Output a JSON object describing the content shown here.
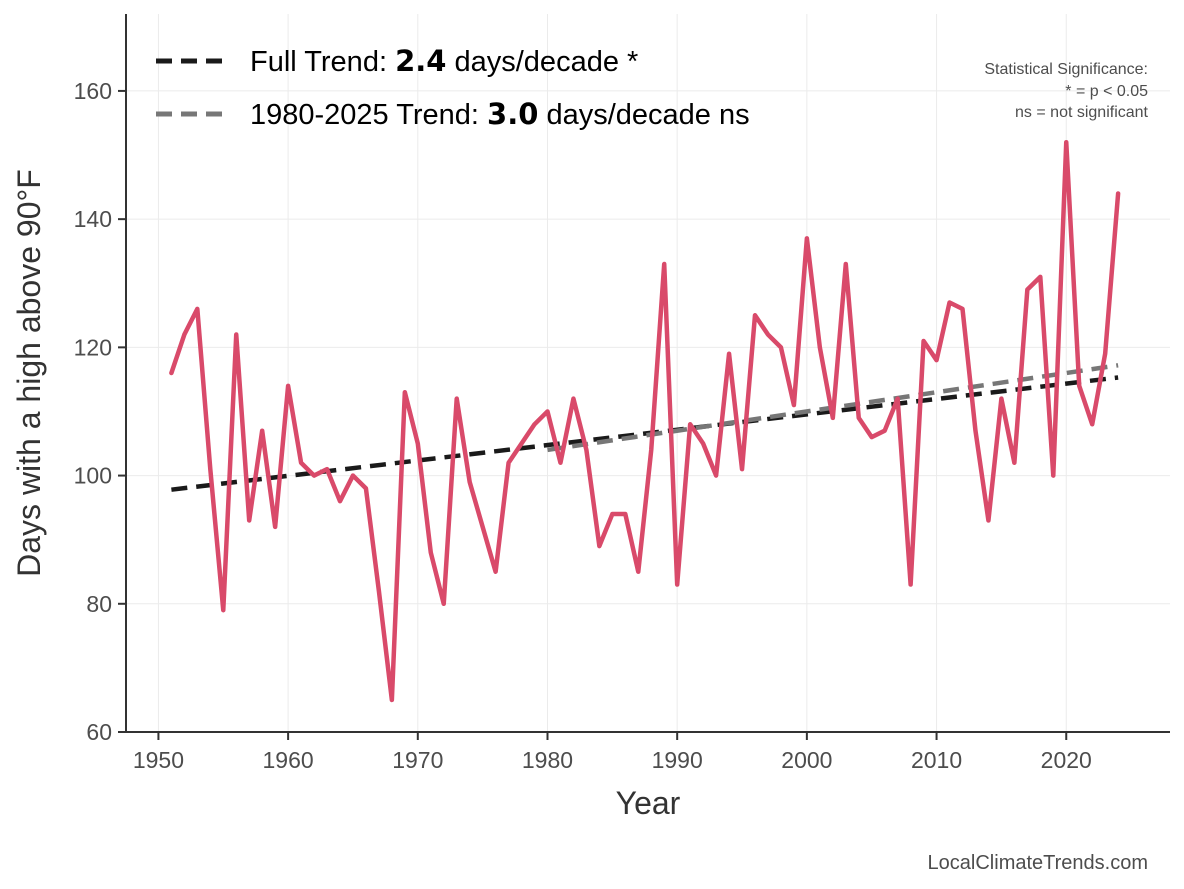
{
  "chart_data": {
    "type": "line",
    "title": "",
    "xlabel": "Year",
    "ylabel": "Days with a high above 90°F",
    "xlim": [
      1947.5,
      2028
    ],
    "ylim": [
      60,
      172
    ],
    "x_ticks": [
      1950,
      1960,
      1970,
      1980,
      1990,
      2000,
      2010,
      2020
    ],
    "y_ticks": [
      60,
      80,
      100,
      120,
      140,
      160
    ],
    "grid": true,
    "legend_position": "top-left",
    "series": [
      {
        "color": "#d94a6a",
        "x": [
          1951,
          1952,
          1953,
          1954,
          1955,
          1956,
          1957,
          1958,
          1959,
          1960,
          1961,
          1962,
          1963,
          1964,
          1965,
          1966,
          1967,
          1968,
          1969,
          1970,
          1971,
          1972,
          1973,
          1974,
          1975,
          1976,
          1977,
          1978,
          1979,
          1980,
          1981,
          1982,
          1983,
          1984,
          1985,
          1986,
          1987,
          1988,
          1989,
          1990,
          1991,
          1992,
          1993,
          1994,
          1995,
          1996,
          1997,
          1998,
          1999,
          2000,
          2001,
          2002,
          2003,
          2004,
          2005,
          2006,
          2007,
          2008,
          2009,
          2010,
          2011,
          2012,
          2013,
          2014,
          2015,
          2016,
          2017,
          2018,
          2019,
          2020,
          2021,
          2022,
          2023,
          2024
        ],
        "values": [
          116,
          122,
          126,
          101,
          79,
          122,
          93,
          107,
          92,
          114,
          102,
          100,
          101,
          96,
          100,
          98,
          82,
          65,
          113,
          105,
          88,
          80,
          112,
          99,
          92,
          85,
          102,
          105,
          108,
          110,
          102,
          112,
          104,
          89,
          94,
          94,
          85,
          104,
          133,
          83,
          108,
          105,
          100,
          119,
          101,
          125,
          122,
          120,
          111,
          137,
          120,
          109,
          133,
          109,
          106,
          107,
          112,
          83,
          121,
          118,
          127,
          126,
          107,
          93,
          112,
          102,
          129,
          131,
          100,
          152,
          114,
          108,
          119,
          144
        ]
      }
    ],
    "trends": [
      {
        "label_prefix": "Full Trend: ",
        "value": "2.4",
        "label_suffix": " days/decade *",
        "color": "#1a1a1a",
        "x": [
          1951,
          2024
        ],
        "y": [
          97.8,
          115.3
        ]
      },
      {
        "label_prefix": "1980-2025 Trend: ",
        "value": "3.0",
        "label_suffix": " days/decade ns",
        "color": "#777777",
        "x": [
          1980,
          2024
        ],
        "y": [
          104.0,
          117.2
        ]
      }
    ],
    "annotations": [
      "Statistical Significance:",
      "* = p < 0.05",
      "ns = not significant"
    ],
    "credit": "LocalClimateTrends.com"
  }
}
